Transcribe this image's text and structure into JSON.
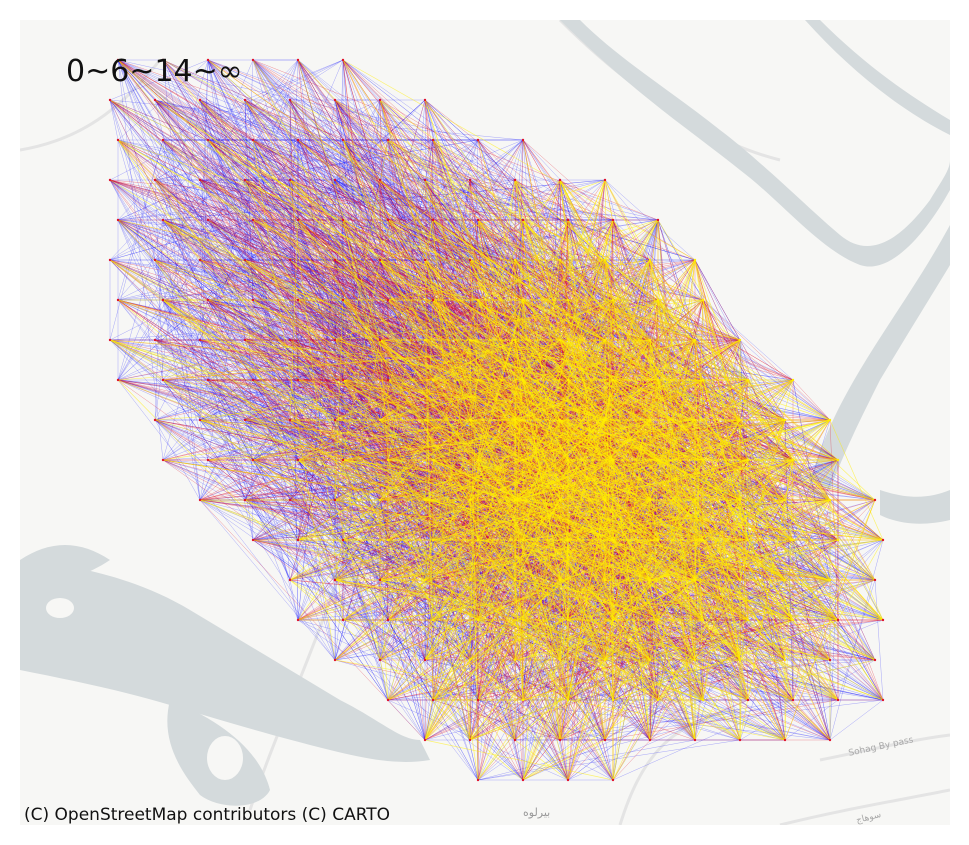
{
  "map": {
    "legend_title": "0~6~14~∞",
    "attribution": "(C) OpenStreetMap contributors (C) CARTO",
    "place_labels": [
      "بيرلوه",
      "Sohag By pass",
      "سوهاج"
    ],
    "basemap_style": "CARTO Positron (light)",
    "colors": {
      "land": "#f7f7f5",
      "water": "#d4dadc",
      "roads": "#e6e6e6",
      "flow_low": "#1010ff",
      "flow_mid": "#e0102a",
      "flow_high": "#ffee00"
    },
    "flow_classes": [
      {
        "range": "0~6",
        "color": "#1010ff"
      },
      {
        "range": "6~14",
        "color": "#e0102a"
      },
      {
        "range": "14~∞",
        "color": "#ffee00"
      }
    ]
  }
}
